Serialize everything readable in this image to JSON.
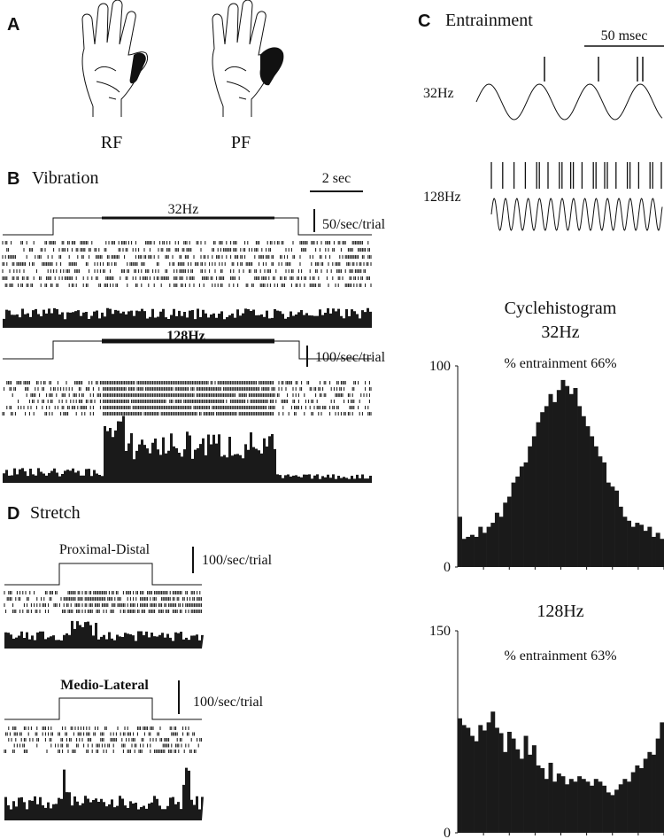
{
  "panels": {
    "A": {
      "letter": "A",
      "hands": [
        "RF",
        "PF"
      ]
    },
    "B": {
      "letter": "B",
      "title": "Vibration",
      "time_scale": "2 sec",
      "traces": [
        {
          "label": "32Hz",
          "scale": "50/sec/trial"
        },
        {
          "label": "128Hz",
          "scale": "100/sec/trial"
        }
      ]
    },
    "C": {
      "letter": "C",
      "title": "Entrainment",
      "time_scale": "50 msec",
      "traces": [
        "32Hz",
        "128Hz"
      ],
      "cyclehistogram_heading": "Cyclehistogram"
    },
    "D": {
      "letter": "D",
      "title": "Stretch",
      "traces": [
        {
          "label": "Proximal-Distal",
          "scale": "100/sec/trial"
        },
        {
          "label": "Medio-Lateral",
          "scale": "100/sec/trial"
        }
      ]
    }
  },
  "chart_data": [
    {
      "type": "histogram",
      "title": "32Hz",
      "subtitle": "% entrainment 66%",
      "color": "#1a1a1a",
      "values": [
        25,
        14,
        15,
        16,
        15,
        20,
        17,
        20,
        22,
        27,
        25,
        32,
        35,
        42,
        45,
        50,
        52,
        60,
        65,
        72,
        77,
        80,
        86,
        82,
        88,
        93,
        90,
        86,
        89,
        80,
        75,
        70,
        65,
        60,
        55,
        52,
        42,
        40,
        38,
        30,
        25,
        23,
        20,
        22,
        21,
        18,
        20,
        15,
        17,
        14
      ],
      "ylim": [
        0,
        100
      ],
      "yticks": [
        0,
        100
      ]
    },
    {
      "type": "histogram",
      "title": "128Hz",
      "subtitle": "% entrainment 63%",
      "color": "#1a1a1a",
      "values": [
        85,
        80,
        78,
        72,
        68,
        80,
        76,
        82,
        90,
        78,
        74,
        60,
        75,
        70,
        62,
        55,
        72,
        58,
        65,
        50,
        48,
        40,
        52,
        38,
        44,
        42,
        36,
        40,
        38,
        42,
        40,
        38,
        35,
        40,
        38,
        35,
        30,
        28,
        32,
        36,
        40,
        38,
        45,
        50,
        48,
        55,
        60,
        58,
        70,
        82
      ],
      "ylim": [
        0,
        150
      ],
      "yticks": [
        0,
        150
      ]
    }
  ]
}
